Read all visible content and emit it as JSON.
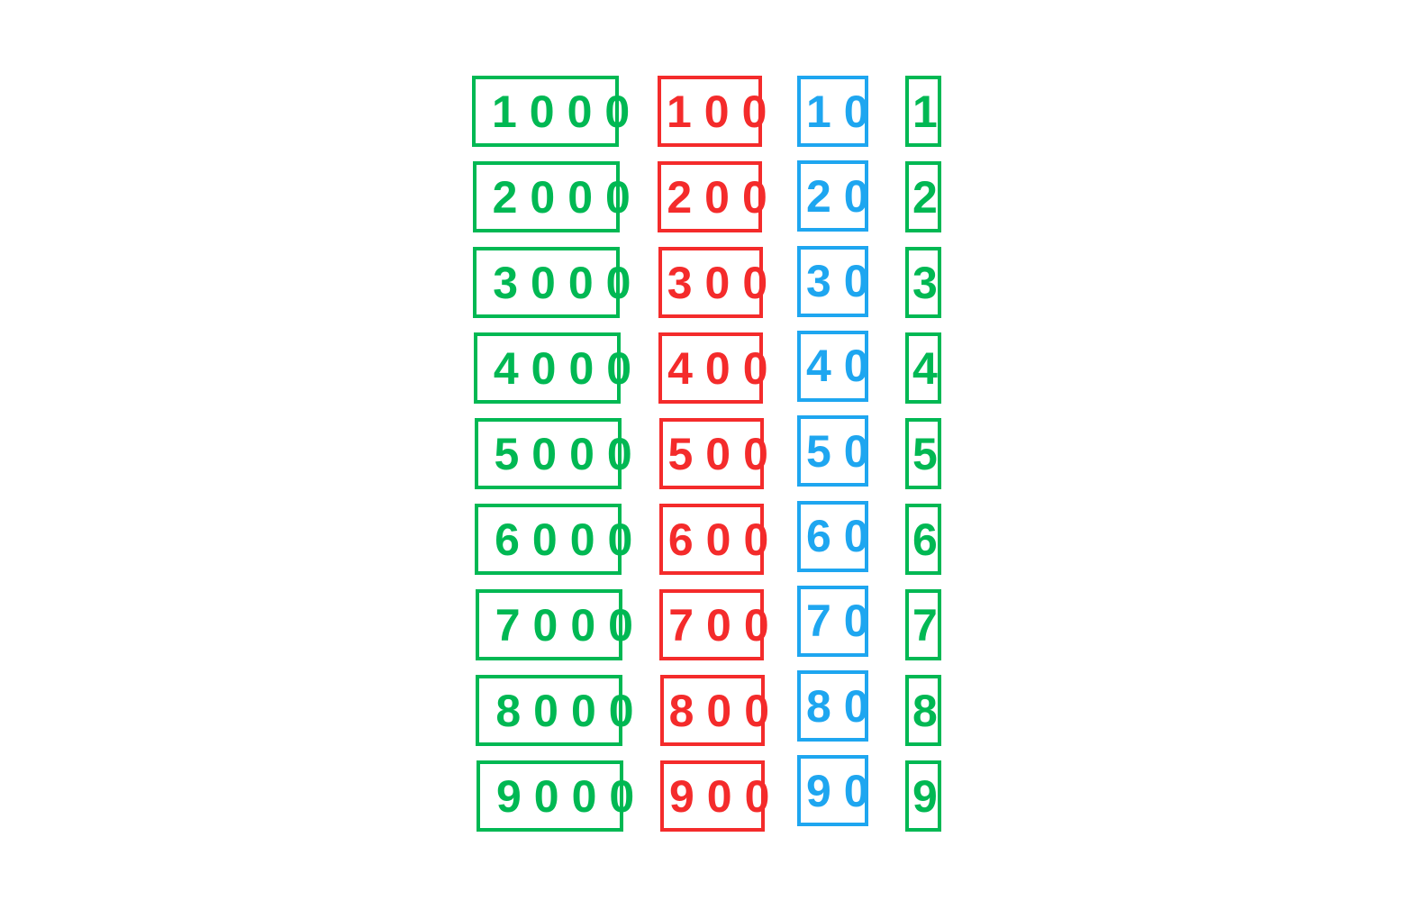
{
  "colors": {
    "thousands": "#00b853",
    "hundreds": "#f42b2b",
    "tens": "#1ea6f0",
    "ones": "#00b853"
  },
  "columns": [
    {
      "key": "thousands",
      "values": [
        "1000",
        "2000",
        "3000",
        "4000",
        "5000",
        "6000",
        "7000",
        "8000",
        "9000"
      ]
    },
    {
      "key": "hundreds",
      "values": [
        "100",
        "200",
        "300",
        "400",
        "500",
        "600",
        "700",
        "800",
        "900"
      ]
    },
    {
      "key": "tens",
      "values": [
        "10",
        "20",
        "30",
        "40",
        "50",
        "60",
        "70",
        "80",
        "90"
      ]
    },
    {
      "key": "ones",
      "values": [
        "1",
        "2",
        "3",
        "4",
        "5",
        "6",
        "7",
        "8",
        "9"
      ]
    }
  ]
}
